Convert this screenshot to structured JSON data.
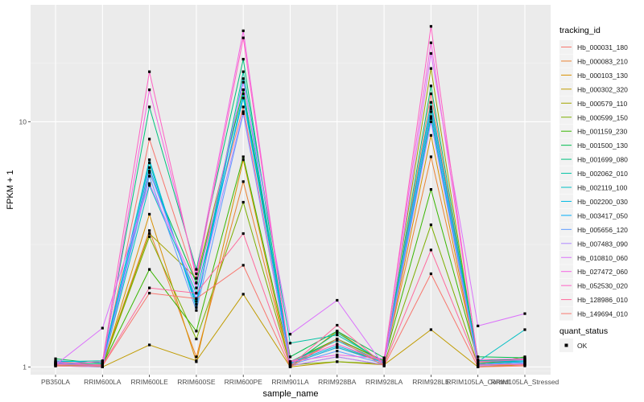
{
  "chart_data": {
    "type": "line",
    "x_label": "sample_name",
    "y_label": "FPKM + 1",
    "y_scale": "log10",
    "ylim": [
      0.93,
      30
    ],
    "y_ticks": [
      1,
      10
    ],
    "y_tick_labels": [
      "1",
      "10"
    ],
    "panel_background": "#ebebeb",
    "grid": true,
    "legend_position": "right",
    "categories": [
      "PB350LA",
      "RRIM600LA",
      "RRIM600LE",
      "RRIM600SE",
      "RRIM600PE",
      "RRIM901LA",
      "RRIM928BA",
      "RRIM928LA",
      "RRIM928LE",
      "RRIM105LA_Control",
      "RRIM105LA_Stressed"
    ],
    "tick_labels": [
      "PB350LA",
      "RRIM600LA",
      "RRIM600LE",
      "RRIM600SE",
      "RRIM600PE",
      "RRIM901LA",
      "RRIM928BA",
      "RRIM928LA",
      "RRIM928LE",
      "RRIM105LA_Control",
      "RRIM105LA_Stressed"
    ],
    "legend_title": "tracking_id",
    "shape_legend_title": "quant_status",
    "shape_legend_label": "OK",
    "series": [
      {
        "name": "Hb_000031_180",
        "color": "#F8766D",
        "values": [
          1.02,
          1.01,
          8.5,
          2.2,
          11.5,
          1.01,
          1.1,
          1.02,
          13.0,
          1.02,
          1.03
        ]
      },
      {
        "name": "Hb_000083_210",
        "color": "#EA8331",
        "values": [
          1.03,
          1.02,
          3.6,
          1.1,
          5.7,
          1.02,
          1.3,
          1.05,
          7.2,
          1.04,
          1.05
        ]
      },
      {
        "name": "Hb_000103_130",
        "color": "#D89000",
        "values": [
          1.01,
          1.0,
          4.2,
          1.05,
          7.0,
          1.0,
          1.4,
          1.03,
          8.8,
          1.01,
          1.02
        ]
      },
      {
        "name": "Hb_000302_320",
        "color": "#C09B00",
        "values": [
          1.02,
          1.0,
          1.23,
          1.06,
          1.98,
          1.0,
          1.05,
          1.02,
          1.42,
          1.0,
          1.02
        ]
      },
      {
        "name": "Hb_000579_110",
        "color": "#A3A500",
        "values": [
          1.04,
          1.02,
          3.5,
          2.3,
          13.5,
          1.03,
          1.2,
          1.05,
          16.5,
          1.03,
          1.05
        ]
      },
      {
        "name": "Hb_000599_150",
        "color": "#7CAE00",
        "values": [
          1.02,
          1.01,
          3.4,
          1.3,
          4.7,
          1.02,
          1.05,
          1.03,
          3.8,
          1.02,
          1.1
        ]
      },
      {
        "name": "Hb_001159_230",
        "color": "#39B600",
        "values": [
          1.05,
          1.02,
          2.5,
          1.4,
          7.2,
          1.05,
          1.3,
          1.06,
          5.3,
          1.06,
          1.08
        ]
      },
      {
        "name": "Hb_001500_130",
        "color": "#00BB4E",
        "values": [
          1.08,
          1.03,
          6.2,
          2.2,
          13.5,
          1.1,
          1.4,
          1.09,
          11.0,
          1.1,
          1.09
        ]
      },
      {
        "name": "Hb_001699_080",
        "color": "#00BF7D",
        "values": [
          1.03,
          1.05,
          11.5,
          2.5,
          18.0,
          1.02,
          1.38,
          1.04,
          14.0,
          1.05,
          1.05
        ]
      },
      {
        "name": "Hb_002062_010",
        "color": "#00C1A3",
        "values": [
          1.05,
          1.06,
          6.8,
          1.8,
          16.0,
          1.25,
          1.35,
          1.05,
          12.0,
          1.06,
          1.07
        ]
      },
      {
        "name": "Hb_002119_100",
        "color": "#00BFC4",
        "values": [
          1.04,
          1.01,
          5.5,
          2.0,
          12.5,
          1.05,
          1.28,
          1.04,
          10.3,
          1.05,
          1.42
        ]
      },
      {
        "name": "Hb_002200_030",
        "color": "#00B9E3",
        "values": [
          1.06,
          1.04,
          7.0,
          1.75,
          15.0,
          1.04,
          1.22,
          1.05,
          10.5,
          1.05,
          1.06
        ]
      },
      {
        "name": "Hb_003417_050",
        "color": "#00ADFA",
        "values": [
          1.04,
          1.02,
          6.5,
          1.85,
          13.0,
          1.03,
          1.2,
          1.04,
          11.5,
          1.03,
          1.05
        ]
      },
      {
        "name": "Hb_005656_120",
        "color": "#619CFF",
        "values": [
          1.03,
          1.01,
          6.0,
          1.7,
          10.8,
          1.02,
          1.16,
          1.03,
          11.3,
          1.02,
          1.04
        ]
      },
      {
        "name": "Hb_007483_090",
        "color": "#AE87FF",
        "values": [
          1.01,
          1.0,
          6.3,
          1.9,
          11.0,
          1.01,
          1.1,
          1.02,
          10.0,
          1.01,
          1.03
        ]
      },
      {
        "name": "Hb_010810_060",
        "color": "#DB72FB",
        "values": [
          1.02,
          1.44,
          5.6,
          2.1,
          14.5,
          1.36,
          1.87,
          1.01,
          19.0,
          1.47,
          1.65
        ]
      },
      {
        "name": "Hb_027472_060",
        "color": "#F564E3",
        "values": [
          1.05,
          1.01,
          13.5,
          2.4,
          23.5,
          1.05,
          1.12,
          1.08,
          21.0,
          1.07,
          1.08
        ]
      },
      {
        "name": "Hb_052530_020",
        "color": "#FF61C3",
        "values": [
          1.03,
          1.05,
          16.0,
          2.3,
          22.0,
          1.05,
          1.24,
          1.05,
          24.5,
          1.05,
          1.07
        ]
      },
      {
        "name": "Hb_128986_010",
        "color": "#FF699C",
        "values": [
          1.02,
          1.02,
          2.1,
          2.0,
          3.5,
          1.01,
          1.48,
          1.02,
          3.0,
          1.02,
          1.02
        ]
      },
      {
        "name": "Hb_149694_010",
        "color": "#F8766D",
        "values": [
          1.01,
          1.01,
          2.0,
          1.9,
          2.6,
          1.0,
          1.3,
          1.01,
          2.4,
          1.0,
          1.01
        ]
      }
    ]
  }
}
